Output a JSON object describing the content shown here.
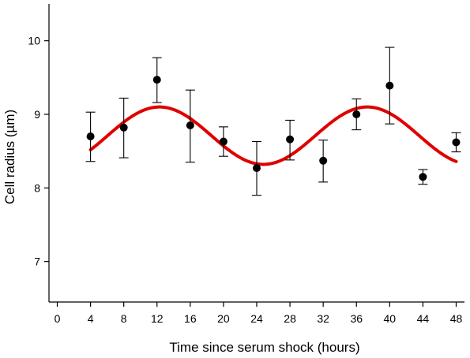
{
  "chart_data": {
    "type": "scatter",
    "xlabel": "Time since serum shock (hours)",
    "ylabel": "Cell radius (µm)",
    "xlim": [
      -1,
      49
    ],
    "ylim": [
      6.45,
      10.5
    ],
    "xticks": [
      0,
      4,
      8,
      12,
      16,
      20,
      24,
      28,
      32,
      36,
      40,
      44,
      48
    ],
    "yticks": [
      7,
      8,
      9,
      10
    ],
    "grid": false,
    "series": [
      {
        "kind": "scatter_errorbar",
        "color": "#000000",
        "points": [
          {
            "x": 4,
            "y": 8.7,
            "lo": 8.36,
            "hi": 9.03
          },
          {
            "x": 8,
            "y": 8.82,
            "lo": 8.41,
            "hi": 9.22
          },
          {
            "x": 12,
            "y": 9.47,
            "lo": 9.16,
            "hi": 9.77
          },
          {
            "x": 16,
            "y": 8.85,
            "lo": 8.35,
            "hi": 9.33
          },
          {
            "x": 20,
            "y": 8.63,
            "lo": 8.43,
            "hi": 8.83
          },
          {
            "x": 24,
            "y": 8.27,
            "lo": 7.9,
            "hi": 8.63
          },
          {
            "x": 28,
            "y": 8.66,
            "lo": 8.38,
            "hi": 8.92
          },
          {
            "x": 32,
            "y": 8.37,
            "lo": 8.08,
            "hi": 8.65
          },
          {
            "x": 36,
            "y": 9.0,
            "lo": 8.79,
            "hi": 9.21
          },
          {
            "x": 40,
            "y": 9.39,
            "lo": 8.87,
            "hi": 9.91
          },
          {
            "x": 44,
            "y": 8.15,
            "lo": 8.05,
            "hi": 8.25
          },
          {
            "x": 48,
            "y": 8.62,
            "lo": 8.49,
            "hi": 8.75
          }
        ]
      },
      {
        "kind": "fit_curve",
        "color": "#e00000",
        "x_range": [
          4,
          48
        ],
        "model": "sinusoid",
        "mean": 8.71,
        "amplitude": 0.39,
        "period": 25,
        "peak_x": 12.3
      }
    ]
  }
}
